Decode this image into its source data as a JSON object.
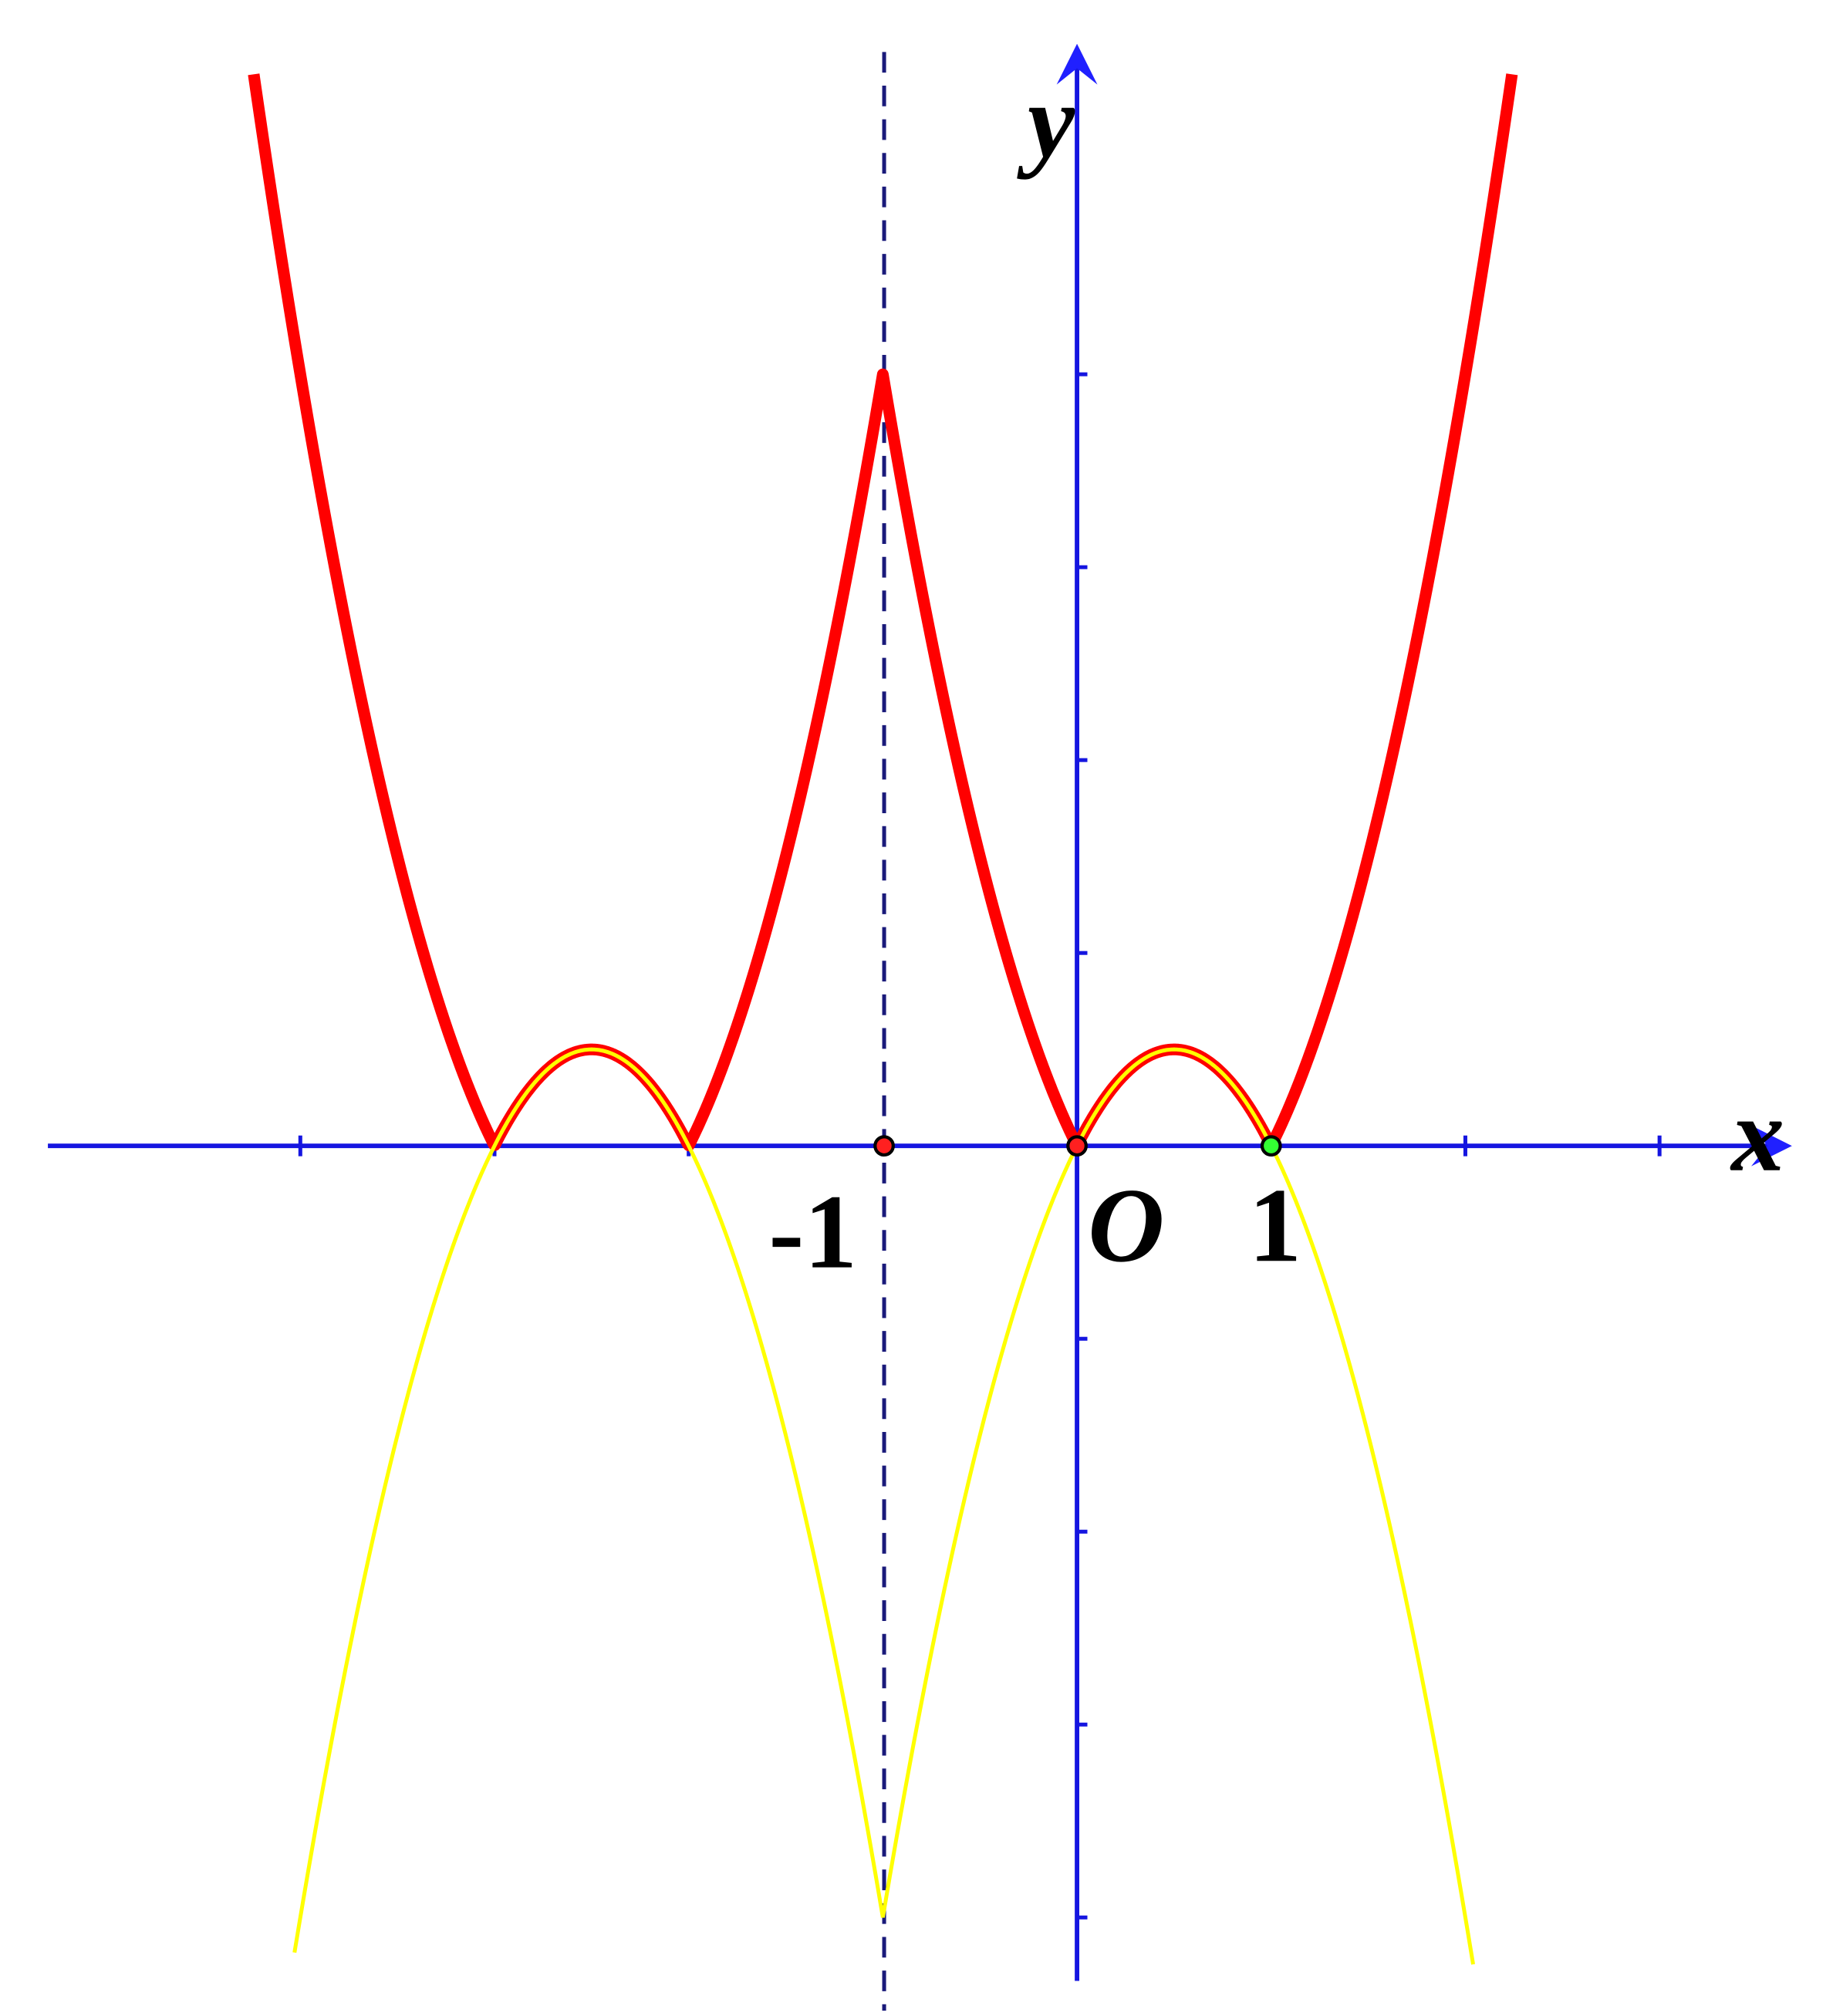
{
  "axes": {
    "x_label": "x",
    "y_label": "y",
    "origin_label": "O"
  },
  "tick_labels": [
    "-1",
    "1"
  ]
}
